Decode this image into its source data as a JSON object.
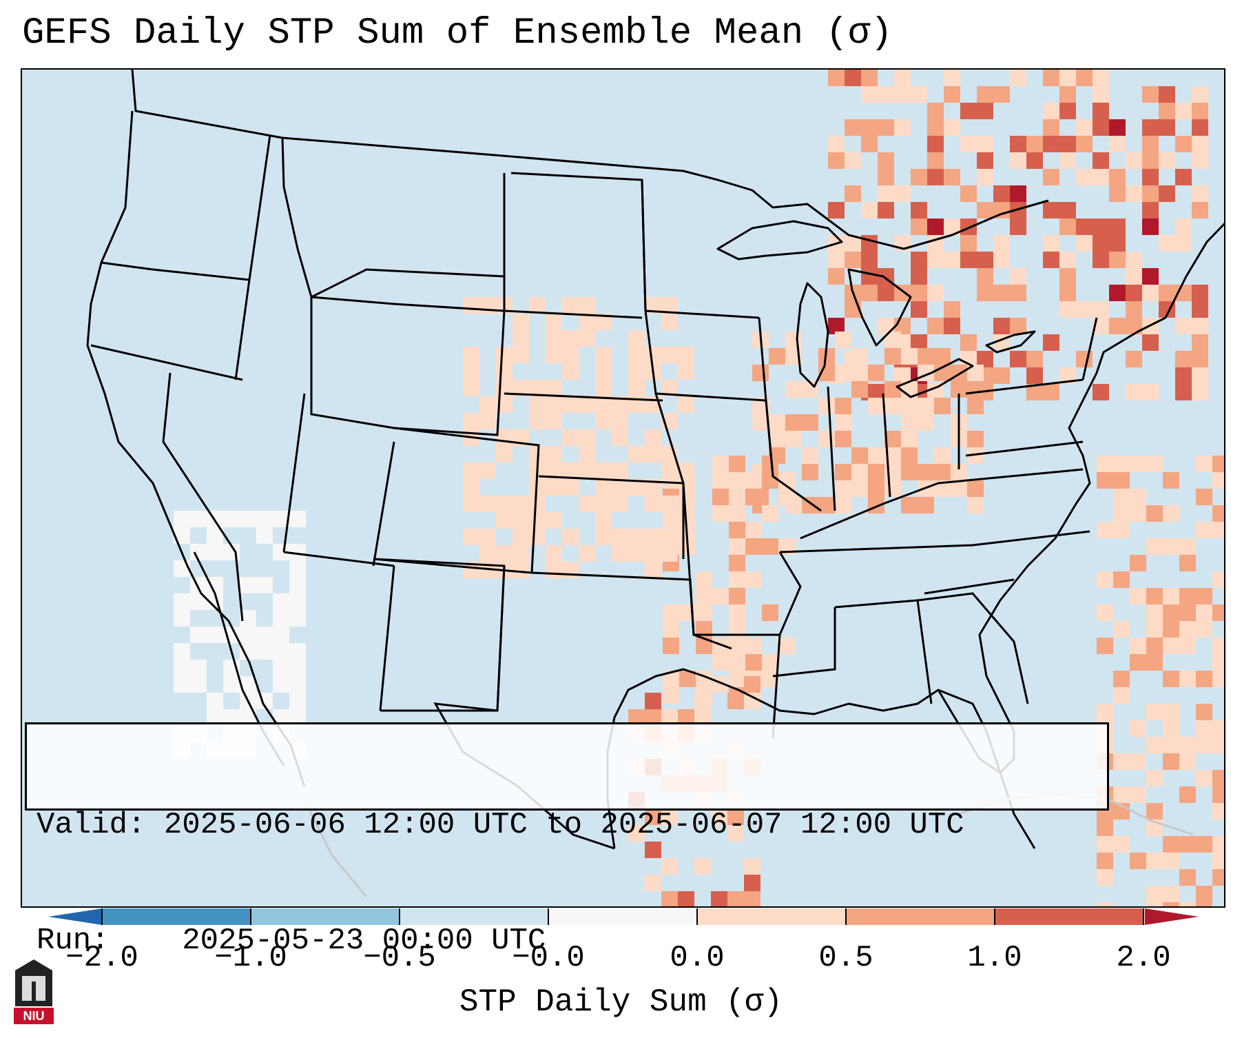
{
  "title": "GEFS Daily STP Sum of Ensemble Mean (σ)",
  "info": {
    "valid_label": "Valid:",
    "valid_value": "2025-06-06 12:00 UTC to 2025-06-07 12:00 UTC",
    "run_label": "Run:",
    "run_value": "2025-05-23 00:00 UTC"
  },
  "colorbar": {
    "label": "STP Daily Sum (σ)",
    "ticks": [
      "−2.0",
      "−1.0",
      "−0.5",
      "−0.0",
      "0.0",
      "0.5",
      "1.0",
      "2.0"
    ],
    "colors": [
      "#4393c3",
      "#92c5de",
      "#d1e5f0",
      "#f7f7f7",
      "#fddbc7",
      "#f4a582",
      "#d6604d"
    ],
    "under_color": "#2166ac",
    "over_color": "#b2182b"
  },
  "logo": {
    "text": "NIU"
  },
  "map": {
    "background_color": "#d1e5f0",
    "regions": [
      {
        "name": "great-lakes-ontario",
        "level": 2
      },
      {
        "name": "ohio-valley",
        "level": 1
      },
      {
        "name": "gulf-coast-texas",
        "level": 2
      },
      {
        "name": "southern-plains",
        "level": 1
      },
      {
        "name": "atlantic-offshore",
        "level": 1
      },
      {
        "name": "mexico-plateau",
        "level": -1
      }
    ]
  }
}
